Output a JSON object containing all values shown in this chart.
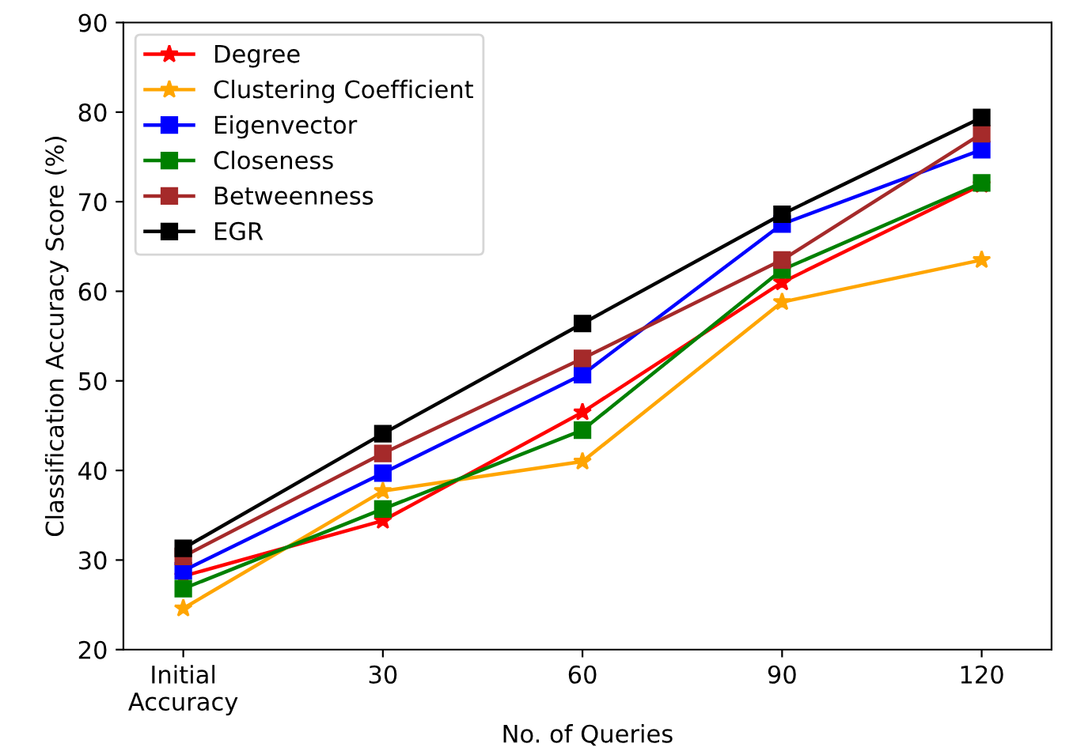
{
  "chart_data": {
    "type": "line",
    "xlabel": "No. of Queries",
    "ylabel": "Classification Accuracy Score (%)",
    "categories": [
      "Initial\nAccuracy",
      "30",
      "60",
      "90",
      "120"
    ],
    "ylim": [
      20,
      90
    ],
    "yticks": [
      20,
      30,
      40,
      50,
      60,
      70,
      80,
      90
    ],
    "grid": false,
    "legend": "top left",
    "series": [
      {
        "name": "Degree",
        "color": "#ff0000",
        "marker": "star",
        "values": [
          28.2,
          34.4,
          46.5,
          61.0,
          71.9
        ]
      },
      {
        "name": "Clustering Coefficient",
        "color": "#ffa500",
        "marker": "star",
        "values": [
          24.6,
          37.7,
          41.0,
          58.8,
          63.5
        ]
      },
      {
        "name": "Eigenvector",
        "color": "#0000ff",
        "marker": "square",
        "values": [
          28.8,
          39.7,
          50.7,
          67.5,
          75.8
        ]
      },
      {
        "name": "Closeness",
        "color": "#008000",
        "marker": "square",
        "values": [
          26.8,
          35.7,
          44.5,
          62.4,
          72.1
        ]
      },
      {
        "name": "Betweenness",
        "color": "#a52a2a",
        "marker": "square",
        "values": [
          30.4,
          41.9,
          52.5,
          63.5,
          77.6
        ]
      },
      {
        "name": "EGR",
        "color": "#000000",
        "marker": "square",
        "values": [
          31.3,
          44.1,
          56.4,
          68.6,
          79.4
        ]
      }
    ]
  }
}
